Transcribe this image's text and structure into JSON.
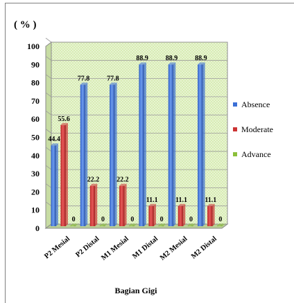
{
  "chart_data": {
    "type": "bar",
    "ylabel": "( % )",
    "xlabel": "Bagian Gigi",
    "ylim": [
      0,
      100
    ],
    "yticks": [
      0,
      10,
      20,
      30,
      40,
      50,
      60,
      70,
      80,
      90,
      100
    ],
    "grid": true,
    "legend_position": "right",
    "categories": [
      "P2 Mesial",
      "P2 Distal",
      "M1 Mesial",
      "M1 Distal",
      "M2 Mesial",
      "M2 Distal"
    ],
    "series": [
      {
        "name": "Absence",
        "values": [
          44.4,
          77.8,
          77.8,
          88.9,
          88.9,
          88.9
        ],
        "labels": [
          "44.4",
          "77.8",
          "77.8",
          "88.9",
          "88.9",
          "88.9"
        ],
        "color": "#3b6fd6"
      },
      {
        "name": "Moderate",
        "values": [
          55.6,
          22.2,
          22.2,
          11.1,
          11.1,
          11.1
        ],
        "labels": [
          "55.6",
          "22.2",
          "22.2",
          "11.1",
          "11.1",
          "11.1"
        ],
        "color": "#cc3333"
      },
      {
        "name": "Advance",
        "values": [
          0,
          0,
          0,
          0,
          0,
          0
        ],
        "labels": [
          "0",
          "0",
          "0",
          "0",
          "0",
          "0"
        ],
        "color": "#8bbf3a"
      }
    ]
  }
}
